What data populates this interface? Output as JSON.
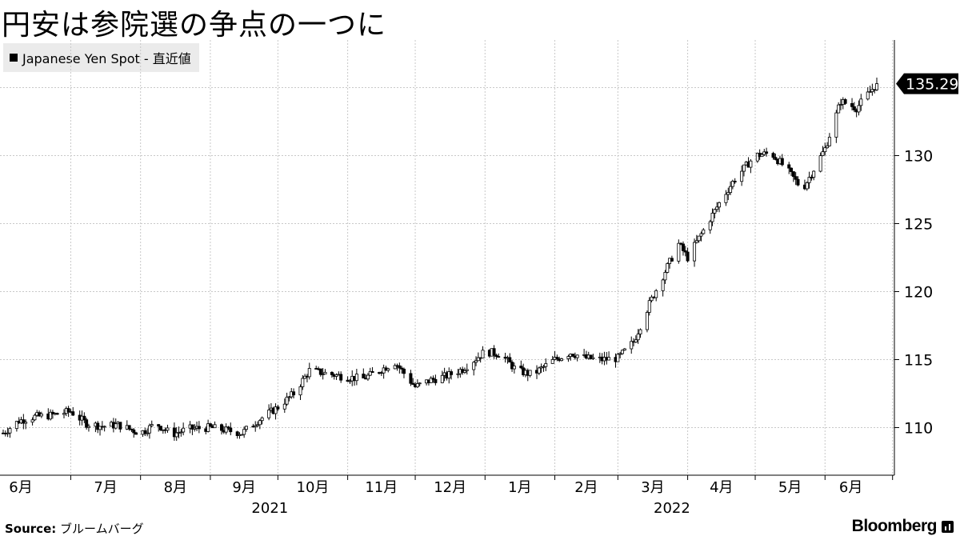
{
  "title": "円安は参院選の争点の一つに",
  "legend": {
    "label": "Japanese Yen Spot - 直近値"
  },
  "source": {
    "label": "Source:",
    "text": "ブルームバーグ"
  },
  "brand": {
    "name": "Bloomberg"
  },
  "colors": {
    "candle": "#000000",
    "grid": "#c8c8c8",
    "legend_bg": "#ebebeb"
  },
  "chart_data": {
    "type": "candlestick",
    "y_axis": {
      "min": 106.5,
      "max": 138.5,
      "ticks": [
        110,
        115,
        120,
        125,
        130
      ],
      "position": "right"
    },
    "last_value": {
      "value": 135.29,
      "label": "135.29"
    },
    "x_axis": {
      "months": [
        "6月",
        "7月",
        "8月",
        "9月",
        "10月",
        "11月",
        "12月",
        "1月",
        "2月",
        "3月",
        "4月",
        "5月",
        "6月"
      ],
      "years": [
        "2021",
        "2022"
      ],
      "start": "2021-06-01",
      "end": "2022-06-24"
    },
    "grid": true,
    "weekly_close_anchors": [
      [
        "2021-06-01",
        109.6
      ],
      [
        "2021-06-08",
        110.5
      ],
      [
        "2021-06-15",
        110.8
      ],
      [
        "2021-06-22",
        110.9
      ],
      [
        "2021-07-01",
        111.2
      ],
      [
        "2021-07-08",
        110.3
      ],
      [
        "2021-07-15",
        110.1
      ],
      [
        "2021-07-22",
        110.2
      ],
      [
        "2021-08-01",
        109.6
      ],
      [
        "2021-08-08",
        110.3
      ],
      [
        "2021-08-15",
        109.5
      ],
      [
        "2021-08-22",
        109.9
      ],
      [
        "2021-09-01",
        110.0
      ],
      [
        "2021-09-08",
        109.8
      ],
      [
        "2021-09-15",
        109.6
      ],
      [
        "2021-09-22",
        110.5
      ],
      [
        "2021-10-01",
        111.5
      ],
      [
        "2021-10-08",
        112.5
      ],
      [
        "2021-10-15",
        114.2
      ],
      [
        "2021-10-22",
        114.0
      ],
      [
        "2021-11-01",
        113.7
      ],
      [
        "2021-11-08",
        113.6
      ],
      [
        "2021-11-15",
        114.2
      ],
      [
        "2021-11-22",
        114.8
      ],
      [
        "2021-12-01",
        113.0
      ],
      [
        "2021-12-08",
        113.5
      ],
      [
        "2021-12-15",
        113.8
      ],
      [
        "2021-12-22",
        114.3
      ],
      [
        "2022-01-01",
        115.6
      ],
      [
        "2022-01-08",
        115.4
      ],
      [
        "2022-01-15",
        114.2
      ],
      [
        "2022-01-22",
        113.9
      ],
      [
        "2022-02-01",
        115.0
      ],
      [
        "2022-02-08",
        115.5
      ],
      [
        "2022-02-15",
        115.1
      ],
      [
        "2022-02-22",
        115.0
      ],
      [
        "2022-03-01",
        115.1
      ],
      [
        "2022-03-08",
        116.3
      ],
      [
        "2022-03-15",
        119.1
      ],
      [
        "2022-03-22",
        121.5
      ],
      [
        "2022-03-28",
        123.5
      ],
      [
        "2022-04-01",
        122.5
      ],
      [
        "2022-04-08",
        124.5
      ],
      [
        "2022-04-15",
        126.5
      ],
      [
        "2022-04-22",
        128.3
      ],
      [
        "2022-05-01",
        130.0
      ],
      [
        "2022-05-08",
        130.2
      ],
      [
        "2022-05-15",
        129.0
      ],
      [
        "2022-05-22",
        127.5
      ],
      [
        "2022-06-01",
        130.5
      ],
      [
        "2022-06-08",
        134.0
      ],
      [
        "2022-06-15",
        133.5
      ],
      [
        "2022-06-24",
        135.29
      ]
    ]
  }
}
